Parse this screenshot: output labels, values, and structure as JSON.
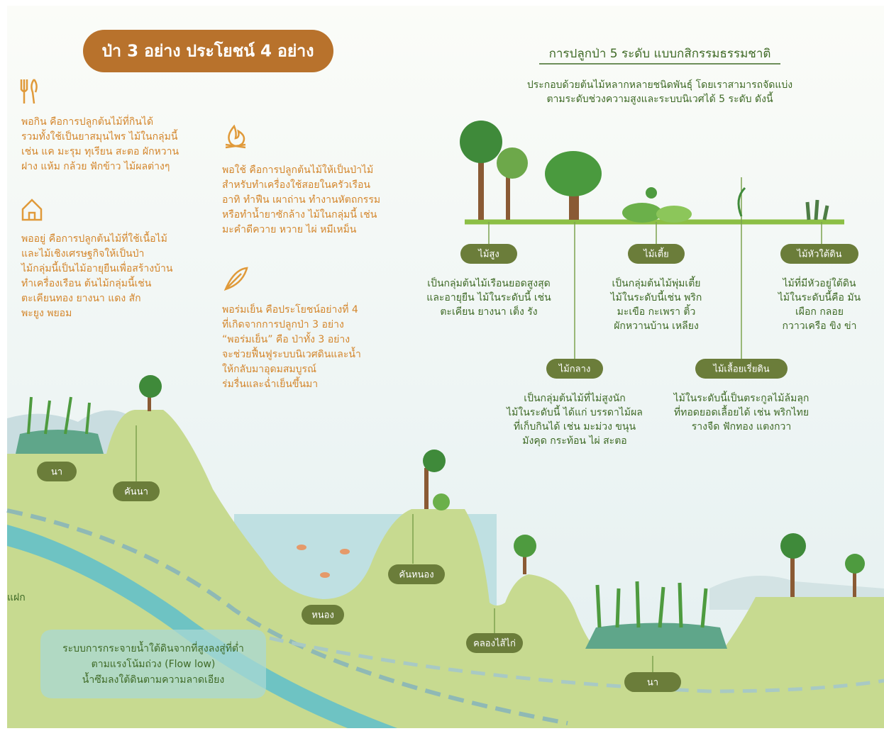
{
  "header": {
    "title": "ป่า 3 อย่าง ประโยชน์ 4 อย่าง"
  },
  "benefits": [
    {
      "lines": [
        "พอกิน คือการปลูกต้นไม้ที่กินได้",
        "รวมทั้งใช้เป็นยาสมุนไพร ไม้ในกลุ่มนี้",
        "เช่น แค มะรุม ทุเรียน สะตอ ผักหวาน",
        "ฝาง แห้ม กล้วย ฟักข้าว ไม้ผลต่างๆ"
      ]
    },
    {
      "lines": [
        "พอใช้ คือการปลูกต้นไม้ให้เป็นป่าไม้",
        "สำหรับทำเครื่องใช้สอยในครัวเรือน",
        "อาทิ ทำฟืน เผาถ่าน ทำงานหัตถกรรม",
        "หรือทำน้ำยาซักล้าง ไม้ในกลุ่มนี้ เช่น",
        "มะคำดีควาย หวาย ไผ่ หมีเหม็น"
      ]
    },
    {
      "lines": [
        "พออยู่ คือการปลูกต้นไม้ที่ใช้เนื้อไม้",
        "และไม้เชิงเศรษฐกิจให้เป็นป่า",
        "ไม้กลุ่มนี้เป็นไม้อายุยืนเพื่อสร้างบ้าน",
        "ทำเครื่องเรือน ต้นไม้กลุ่มนี้เช่น",
        "ตะเคียนทอง ยางนา แดง สัก",
        "พะยูง พยอม"
      ]
    },
    {
      "lines": [
        "พอร่มเย็น คือประโยชน์อย่างที่ 4",
        "ที่เกิดจากการปลูกป่า 3 อย่าง",
        "“พอร่มเย็น” คือ ป่าทั้ง 3 อย่าง",
        "จะช่วยฟื้นฟูระบบนิเวศดินและน้ำ",
        "ให้กลับมาอุดมสมบูรณ์",
        "ร่มรื่นและฉ่ำเย็นขึ้นมา"
      ]
    }
  ],
  "levels_section": {
    "title": "การปลูกป่า 5 ระดับ แบบกสิกรรมธรรมชาติ",
    "subtitle": [
      "ประกอบด้วยต้นไม้หลากหลายชนิดพันธุ์ โดยเราสามารถจัดแบ่ง",
      "ตามระดับช่วงความสูงและระบบนิเวศได้ 5 ระดับ ดังนี้"
    ],
    "levels": [
      {
        "label": "ไม้สูง",
        "lines": [
          "เป็นกลุ่มต้นไม้เรือนยอดสูงสุด",
          "และอายุยืน ไม้ในระดับนี้ เช่น",
          "ตะเคียน ยางนา เต็ง รัง"
        ]
      },
      {
        "label": "ไม้กลาง",
        "lines": [
          "เป็นกลุ่มต้นไม้ที่ไม่สูงนัก",
          "ไม้ในระดับนี้ ได้แก่ บรรดาไม้ผล",
          "ที่เก็บกินได้ เช่น มะม่วง ขนุน",
          "มังคุด กระท้อน ไผ่ สะตอ"
        ]
      },
      {
        "label": "ไม้เตี้ย",
        "lines": [
          "เป็นกลุ่มต้นไม้พุ่มเตี้ย",
          "ไม้ในระดับนี้เช่น พริก",
          "มะเขือ กะเพรา ติ้ว",
          "ผักหวานบ้าน เหลียง"
        ]
      },
      {
        "label": "ไม้เลื้อยเรี่ยดิน",
        "lines": [
          "ไม้ในระดับนี้เป็นตระกูลไม้ล้มลุก",
          "ที่ทอดยอดเลื้อยได้ เช่น พริกไทย",
          "รางจืด ฟักทอง แตงกวา"
        ]
      },
      {
        "label": "ไม้หัวใต้ดิน",
        "lines": [
          "ไม้ที่มีหัวอยู่ใต้ดิน",
          "ไม้ในระดับนี้คือ มัน",
          "เผือก กลอย",
          "กวาวเครือ ขิง ข่า"
        ]
      }
    ]
  },
  "landscape": {
    "labels": [
      "นา",
      "คันนา",
      "หนอง",
      "คันหนอง",
      "คลองไส้ไก่",
      "นา"
    ],
    "vetiver": "แฝก",
    "flow_note": [
      "ระบบการกระจายน้ำใต้ดินจากที่สูงลงสู่ที่ต่ำ",
      "ตามแรงโน้มถ่วง (Flow low)",
      "น้ำซึมลงใต้ดินตามความลาดเอียง"
    ]
  }
}
